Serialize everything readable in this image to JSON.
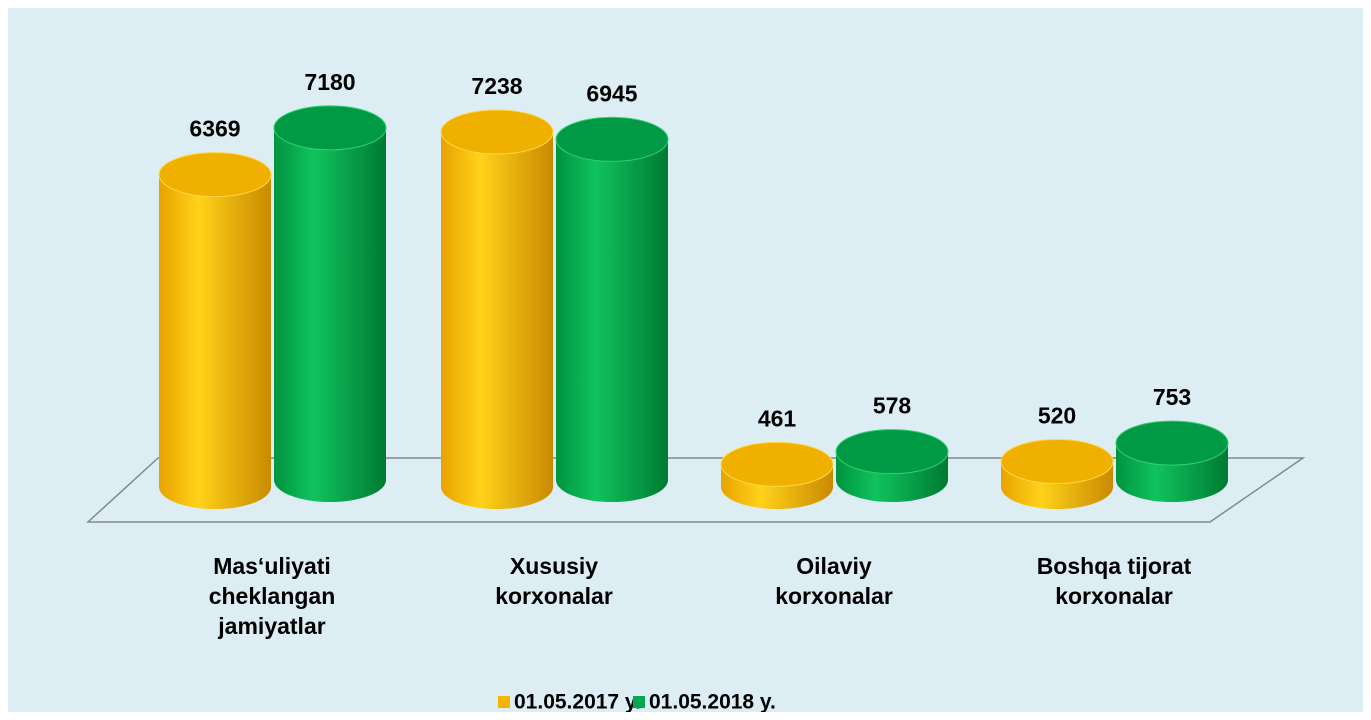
{
  "chart_data": {
    "type": "bar3d",
    "categories": [
      "Mas‘uliyati cheklangan jamiyatlar",
      "Xususiy korxonalar",
      "Oilaviy korxonalar",
      "Boshqa tijorat korxonalar"
    ],
    "series": [
      {
        "name": "01.05.2017 y.",
        "color": "#f5b400",
        "values": [
          6369,
          7238,
          461,
          520
        ]
      },
      {
        "name": "01.05.2018 y.",
        "color": "#00a84f",
        "values": [
          7180,
          6945,
          578,
          753
        ]
      }
    ],
    "legend": "bottom"
  }
}
